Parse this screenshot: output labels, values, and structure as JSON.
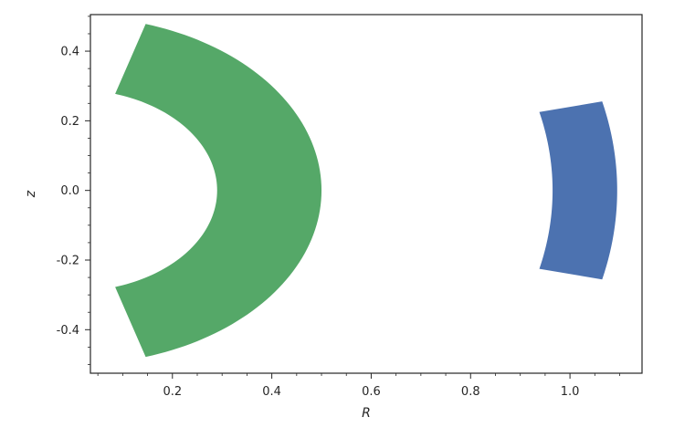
{
  "chart_data": {
    "type": "area",
    "title": "",
    "xlabel": "R",
    "ylabel": "z",
    "xlim": [
      0.035,
      1.145
    ],
    "ylim": [
      -0.525,
      0.505
    ],
    "grid": false,
    "legend": "none",
    "xticks": [
      {
        "value": 0.2,
        "label": "0.2"
      },
      {
        "value": 0.4,
        "label": "0.4"
      },
      {
        "value": 0.6,
        "label": "0.6"
      },
      {
        "value": 0.8,
        "label": "0.8"
      },
      {
        "value": 1.0,
        "label": "1.0"
      }
    ],
    "yticks": [
      {
        "value": 0.4,
        "label": "0.4"
      },
      {
        "value": 0.2,
        "label": "0.2"
      },
      {
        "value": 0.0,
        "label": "0.0"
      },
      {
        "value": -0.2,
        "label": "-0.2"
      },
      {
        "value": -0.4,
        "label": "-0.4"
      }
    ],
    "regions": [
      {
        "color": "#55a868",
        "shape": "annular-sector",
        "center": [
          0.0,
          0.0
        ],
        "inner_radius": 0.29,
        "outer_radius": 0.5,
        "theta_min_deg": -73,
        "theta_max_deg": 73
      },
      {
        "color": "#4c72b0",
        "shape": "annular-sector",
        "center": [
          0.0,
          0.0
        ],
        "inner_radius": 0.965,
        "outer_radius": 1.095,
        "theta_min_deg": -13.5,
        "theta_max_deg": 13.5
      }
    ]
  }
}
